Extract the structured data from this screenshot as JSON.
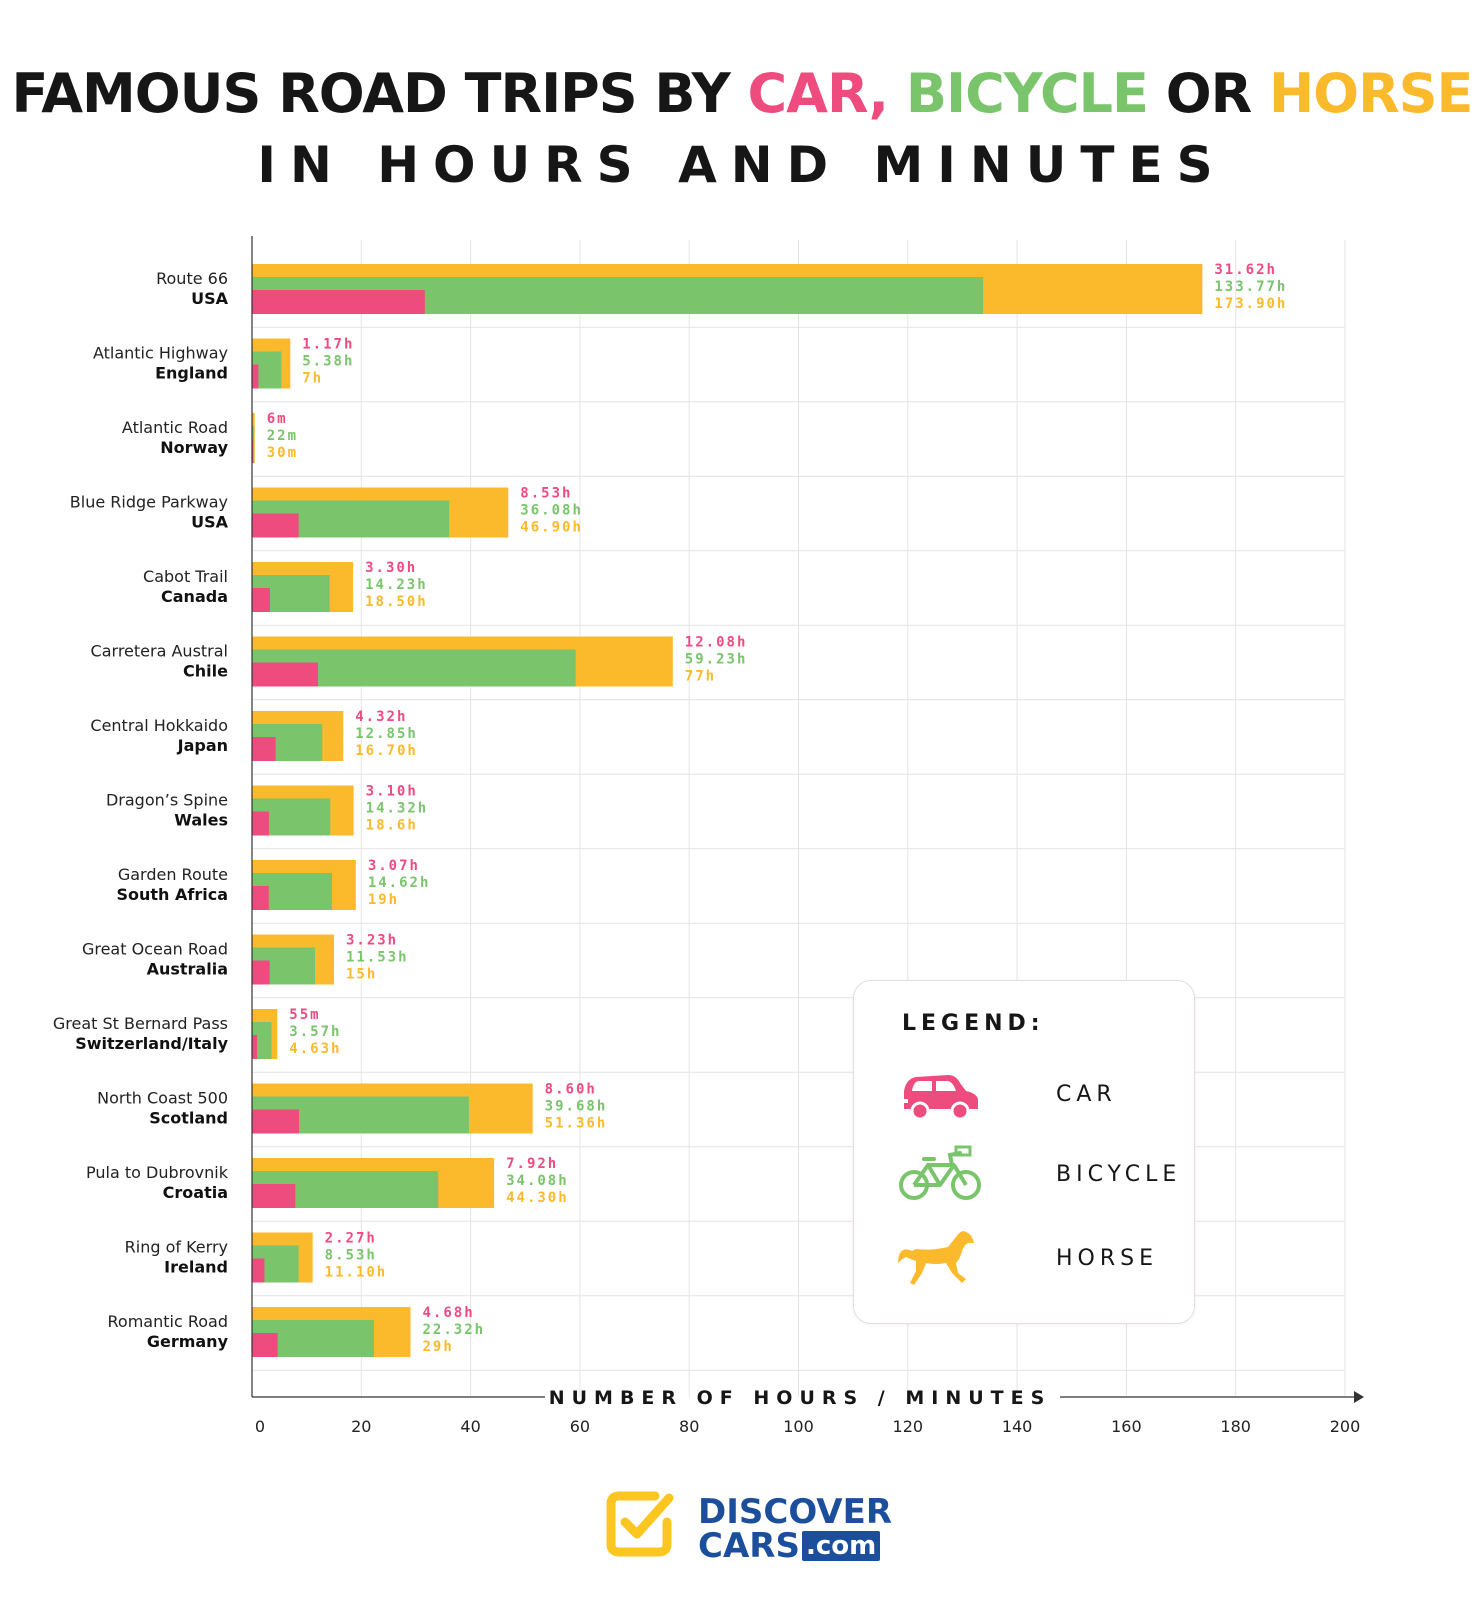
{
  "title": {
    "prefix": "FAMOUS ROAD TRIPS BY ",
    "car": "CAR,",
    "bicycle": "BICYCLE",
    "or": " OR ",
    "horse": "HORSE",
    "line2": "IN HOURS AND MINUTES"
  },
  "colors": {
    "car": "#ee4b7f",
    "bicycle": "#7ac46c",
    "horse": "#fbba2b",
    "text": "#161616",
    "grid": "#e4e4e4"
  },
  "legend": {
    "title": "LEGEND:",
    "items": [
      {
        "key": "car",
        "label": "CAR",
        "icon": "car-icon"
      },
      {
        "key": "bicycle",
        "label": "BICYCLE",
        "icon": "bicycle-icon"
      },
      {
        "key": "horse",
        "label": "HORSE",
        "icon": "horse-icon"
      }
    ]
  },
  "logo": {
    "line1": "DISCOVER",
    "line2": "CARS",
    "suffix": ".com"
  },
  "chart_data": {
    "type": "bar",
    "orientation": "horizontal",
    "xlabel": "NUMBER OF HOURS / MINUTES",
    "xlim": [
      0,
      200
    ],
    "xticks": [
      0,
      20,
      40,
      60,
      80,
      100,
      120,
      140,
      160,
      180,
      200
    ],
    "grid": true,
    "legend_position": "bottom-right",
    "categories": [
      {
        "name": "Route 66",
        "country": "USA"
      },
      {
        "name": "Atlantic Highway",
        "country": "England"
      },
      {
        "name": "Atlantic Road",
        "country": "Norway"
      },
      {
        "name": "Blue Ridge Parkway",
        "country": "USA"
      },
      {
        "name": "Cabot Trail",
        "country": "Canada"
      },
      {
        "name": "Carretera Austral",
        "country": "Chile"
      },
      {
        "name": "Central Hokkaido",
        "country": "Japan"
      },
      {
        "name": "Dragon’s Spine",
        "country": "Wales"
      },
      {
        "name": "Garden Route",
        "country": "South Africa"
      },
      {
        "name": "Great Ocean Road",
        "country": "Australia"
      },
      {
        "name": "Great St Bernard Pass",
        "country": "Switzerland/Italy"
      },
      {
        "name": "North Coast 500",
        "country": "Scotland"
      },
      {
        "name": "Pula to Dubrovnik",
        "country": "Croatia"
      },
      {
        "name": "Ring of Kerry",
        "country": "Ireland"
      },
      {
        "name": "Romantic Road",
        "country": "Germany"
      }
    ],
    "series": [
      {
        "name": "CAR",
        "key": "car",
        "values": [
          31.62,
          1.17,
          0.1,
          8.53,
          3.3,
          12.08,
          4.32,
          3.1,
          3.07,
          3.23,
          0.92,
          8.6,
          7.92,
          2.27,
          4.68
        ],
        "labels": [
          "31.62h",
          "1.17h",
          "6m",
          "8.53h",
          "3.30h",
          "12.08h",
          "4.32h",
          "3.10h",
          "3.07h",
          "3.23h",
          "55m",
          "8.60h",
          "7.92h",
          "2.27h",
          "4.68h"
        ]
      },
      {
        "name": "BICYCLE",
        "key": "bicycle",
        "values": [
          133.77,
          5.38,
          0.37,
          36.08,
          14.23,
          59.23,
          12.85,
          14.32,
          14.62,
          11.53,
          3.57,
          39.68,
          34.08,
          8.53,
          22.32
        ],
        "labels": [
          "133.77h",
          "5.38h",
          "22m",
          "36.08h",
          "14.23h",
          "59.23h",
          "12.85h",
          "14.32h",
          "14.62h",
          "11.53h",
          "3.57h",
          "39.68h",
          "34.08h",
          "8.53h",
          "22.32h"
        ]
      },
      {
        "name": "HORSE",
        "key": "horse",
        "values": [
          173.9,
          7,
          0.5,
          46.9,
          18.5,
          77,
          16.7,
          18.6,
          19,
          15,
          4.63,
          51.36,
          44.3,
          11.1,
          29
        ],
        "labels": [
          "173.90h",
          "7h",
          "30m",
          "46.90h",
          "18.50h",
          "77h",
          "16.70h",
          "18.6h",
          "19h",
          "15h",
          "4.63h",
          "51.36h",
          "44.30h",
          "11.10h",
          "29h"
        ]
      }
    ]
  }
}
